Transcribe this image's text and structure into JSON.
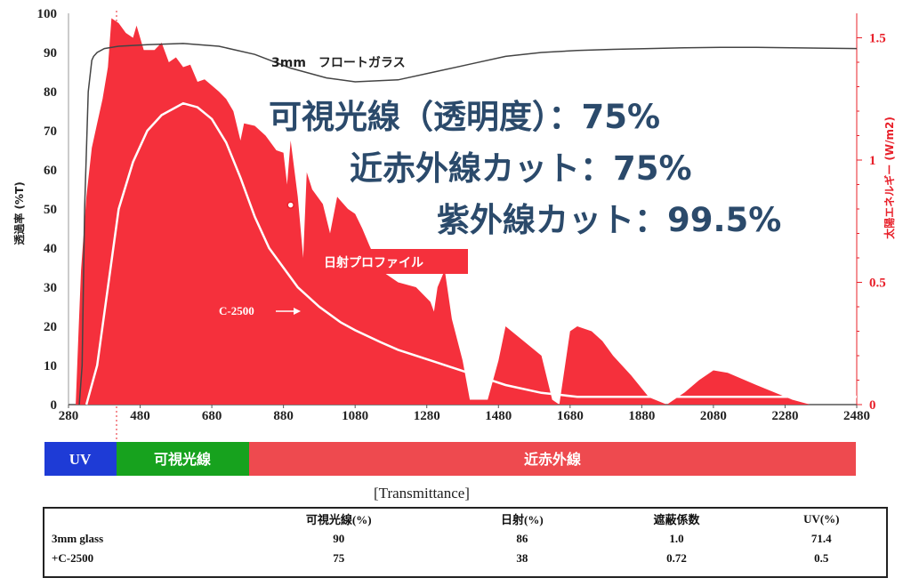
{
  "chart_data": {
    "type": "area",
    "title": "",
    "xlabel": "",
    "ylabel": "透過率 (%T)",
    "ylabel_right": "太陽エネルギー (W/m2)",
    "xlim": [
      280,
      2480
    ],
    "ylim": [
      0,
      100
    ],
    "ylim_right": [
      0,
      1.6
    ],
    "x_ticks": [
      280,
      480,
      680,
      880,
      1080,
      1280,
      1480,
      1680,
      1880,
      2080,
      2280,
      2480
    ],
    "y_ticks": [
      0,
      10,
      20,
      30,
      40,
      50,
      60,
      70,
      80,
      90,
      100
    ],
    "y_ticks_right": [
      0,
      0.5,
      1,
      1.5
    ],
    "series": [
      {
        "name": "日射プロファイル",
        "axis": "right",
        "color": "#f5303c",
        "points": [
          [
            300,
            0
          ],
          [
            308,
            0.3
          ],
          [
            315,
            0.55
          ],
          [
            330,
            0.85
          ],
          [
            345,
            1.05
          ],
          [
            360,
            1.15
          ],
          [
            375,
            1.25
          ],
          [
            390,
            1.38
          ],
          [
            400,
            1.58
          ],
          [
            420,
            1.56
          ],
          [
            440,
            1.52
          ],
          [
            460,
            1.5
          ],
          [
            470,
            1.55
          ],
          [
            490,
            1.45
          ],
          [
            520,
            1.45
          ],
          [
            540,
            1.48
          ],
          [
            560,
            1.4
          ],
          [
            580,
            1.42
          ],
          [
            600,
            1.38
          ],
          [
            620,
            1.39
          ],
          [
            640,
            1.32
          ],
          [
            660,
            1.33
          ],
          [
            700,
            1.28
          ],
          [
            720,
            1.25
          ],
          [
            740,
            1.2
          ],
          [
            760,
            1.08
          ],
          [
            770,
            1.15
          ],
          [
            800,
            1.14
          ],
          [
            830,
            1.1
          ],
          [
            860,
            1.04
          ],
          [
            880,
            1.03
          ],
          [
            890,
            0.9
          ],
          [
            900,
            1.08
          ],
          [
            920,
            0.85
          ],
          [
            935,
            0.6
          ],
          [
            945,
            0.95
          ],
          [
            960,
            0.88
          ],
          [
            990,
            0.82
          ],
          [
            1010,
            0.7
          ],
          [
            1030,
            0.85
          ],
          [
            1060,
            0.8
          ],
          [
            1080,
            0.78
          ],
          [
            1100,
            0.72
          ],
          [
            1120,
            0.65
          ],
          [
            1150,
            0.55
          ],
          [
            1200,
            0.5
          ],
          [
            1250,
            0.48
          ],
          [
            1290,
            0.42
          ],
          [
            1300,
            0.38
          ],
          [
            1310,
            0.48
          ],
          [
            1330,
            0.55
          ],
          [
            1350,
            0.35
          ],
          [
            1380,
            0.18
          ],
          [
            1400,
            0.02
          ],
          [
            1450,
            0.02
          ],
          [
            1480,
            0.18
          ],
          [
            1500,
            0.32
          ],
          [
            1550,
            0.26
          ],
          [
            1600,
            0.2
          ],
          [
            1630,
            0.02
          ],
          [
            1650,
            0
          ],
          [
            1680,
            0.3
          ],
          [
            1700,
            0.32
          ],
          [
            1740,
            0.3
          ],
          [
            1770,
            0.26
          ],
          [
            1800,
            0.2
          ],
          [
            1850,
            0.12
          ],
          [
            1900,
            0.03
          ],
          [
            1950,
            0
          ],
          [
            2000,
            0.05
          ],
          [
            2040,
            0.1
          ],
          [
            2080,
            0.14
          ],
          [
            2120,
            0.13
          ],
          [
            2200,
            0.08
          ],
          [
            2300,
            0.02
          ],
          [
            2350,
            0
          ],
          [
            2480,
            0
          ]
        ]
      },
      {
        "name": "3mm フロートガラス",
        "axis": "left",
        "color": "#444444",
        "points": [
          [
            310,
            0
          ],
          [
            318,
            10
          ],
          [
            325,
            50
          ],
          [
            335,
            80
          ],
          [
            345,
            88
          ],
          [
            350,
            89
          ],
          [
            360,
            90
          ],
          [
            380,
            91
          ],
          [
            420,
            91.6
          ],
          [
            500,
            92
          ],
          [
            600,
            92.3
          ],
          [
            700,
            91.6
          ],
          [
            800,
            89.5
          ],
          [
            900,
            86
          ],
          [
            1000,
            83.5
          ],
          [
            1080,
            82.5
          ],
          [
            1200,
            83
          ],
          [
            1300,
            85
          ],
          [
            1400,
            87
          ],
          [
            1500,
            89
          ],
          [
            1600,
            90
          ],
          [
            1700,
            90.5
          ],
          [
            1800,
            90.8
          ],
          [
            1900,
            91
          ],
          [
            2000,
            91.2
          ],
          [
            2100,
            91.3
          ],
          [
            2200,
            91.3
          ],
          [
            2300,
            91.2
          ],
          [
            2400,
            91.1
          ],
          [
            2480,
            91
          ]
        ]
      },
      {
        "name": "C-2500",
        "axis": "left",
        "color": "#ffffff",
        "points": [
          [
            330,
            0
          ],
          [
            360,
            10
          ],
          [
            390,
            30
          ],
          [
            420,
            50
          ],
          [
            460,
            62
          ],
          [
            500,
            70
          ],
          [
            540,
            74
          ],
          [
            580,
            76
          ],
          [
            600,
            77
          ],
          [
            640,
            76
          ],
          [
            680,
            73
          ],
          [
            720,
            67
          ],
          [
            760,
            58
          ],
          [
            800,
            48
          ],
          [
            840,
            40
          ],
          [
            880,
            35
          ],
          [
            920,
            30
          ],
          [
            980,
            25
          ],
          [
            1040,
            21
          ],
          [
            1080,
            19
          ],
          [
            1150,
            16
          ],
          [
            1200,
            14
          ],
          [
            1300,
            11
          ],
          [
            1400,
            8
          ],
          [
            1500,
            5
          ],
          [
            1600,
            3
          ],
          [
            1700,
            2
          ],
          [
            1800,
            2
          ],
          [
            1900,
            2
          ],
          [
            2000,
            2
          ],
          [
            2100,
            2
          ],
          [
            2200,
            2
          ],
          [
            2300,
            2
          ],
          [
            2400,
            2
          ],
          [
            2480,
            2
          ]
        ]
      }
    ],
    "marker": {
      "x": 900,
      "y": 51
    },
    "series_labels": {
      "glass": "3mm　フロートガラス",
      "solar": "日射プロファイル",
      "c2500": "C-2500"
    },
    "callouts": [
      "可視光線（透明度）：75%",
      "近赤外線カット：75%",
      "紫外線カット：99.5%"
    ],
    "bands": [
      {
        "label": "UV",
        "from": 280,
        "to": 380,
        "color": "#1e3bd6"
      },
      {
        "label": "可視光線",
        "from": 380,
        "to": 780,
        "color": "#17a21e"
      },
      {
        "label": "近赤外線",
        "from": 780,
        "to": 2480,
        "color": "#ee4a4f"
      }
    ]
  },
  "table": {
    "title": "[Transmittance]",
    "headers": [
      "",
      "可視光線(%)",
      "日射(%)",
      "遮蔽係数",
      "UV(%)"
    ],
    "rows": [
      [
        "3mm glass",
        "90",
        "86",
        "1.0",
        "71.4"
      ],
      [
        "+C-2500",
        "75",
        "38",
        "0.72",
        "0.5"
      ]
    ]
  }
}
